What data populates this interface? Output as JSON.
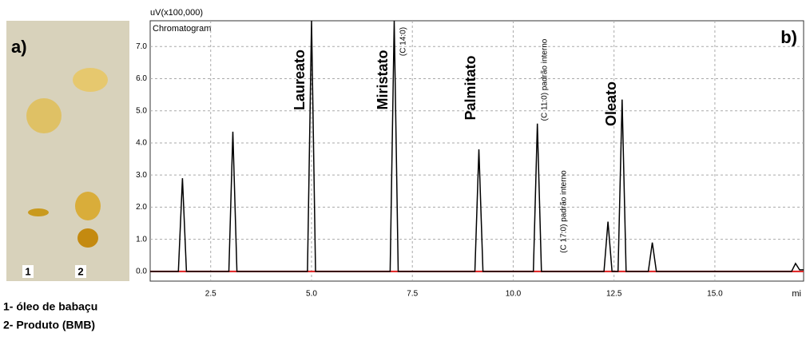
{
  "panel_a": {
    "label": "a)",
    "lanes": [
      "1",
      "2"
    ],
    "legend": [
      "1- óleo de babaçu",
      "2- Produto (BMB)"
    ]
  },
  "chart_data": {
    "type": "line",
    "panel_label": "b)",
    "title": "Chromatogram",
    "ylabel": "uV(x100,000)",
    "xlabel": "mi",
    "xlim": [
      1.0,
      17.2
    ],
    "xticks": [
      {
        "value": 2.5,
        "label": "2.5"
      },
      {
        "value": 5,
        "label": "5.0"
      },
      {
        "value": 7.5,
        "label": "7.5"
      },
      {
        "value": 10,
        "label": "10.0"
      },
      {
        "value": 12.5,
        "label": "12.5"
      },
      {
        "value": 15,
        "label": "15.0"
      }
    ],
    "ylim": [
      -0.3,
      7.8
    ],
    "yticks": [
      {
        "value": 0,
        "label": "0.0"
      },
      {
        "value": 1,
        "label": "1.0"
      },
      {
        "value": 2,
        "label": "2.0"
      },
      {
        "value": 3,
        "label": "3.0"
      },
      {
        "value": 4,
        "label": "4.0"
      },
      {
        "value": 5,
        "label": "5.0"
      },
      {
        "value": 6,
        "label": "6.0"
      },
      {
        "value": 7,
        "label": "7.0"
      }
    ],
    "grid": true,
    "color": "#000000",
    "baseline_color": "#e02020",
    "x": [
      1.0,
      1.7,
      1.8,
      1.9,
      2.95,
      3.05,
      3.15,
      4.9,
      5.0,
      5.1,
      6.95,
      7.05,
      7.15,
      9.05,
      9.15,
      9.25,
      10.5,
      10.6,
      10.7,
      12.25,
      12.35,
      12.45,
      12.6,
      12.7,
      12.8,
      13.35,
      13.45,
      13.55,
      16.9,
      17.0,
      17.1,
      17.2
    ],
    "values": [
      0,
      0,
      2.9,
      0,
      0,
      4.35,
      0,
      0,
      7.8,
      0,
      0,
      7.8,
      0,
      0,
      3.8,
      0,
      0,
      4.6,
      0,
      0,
      1.55,
      0,
      0,
      5.35,
      0,
      0,
      0.9,
      0,
      0,
      0.25,
      0.05,
      0.05
    ],
    "annotations": [
      "Laureato",
      "Miristato",
      "(C 14:0)",
      "Palmitato",
      "(C 11:0) padrão interno",
      "(C 17:0) padrão interno",
      "Oleato"
    ]
  }
}
